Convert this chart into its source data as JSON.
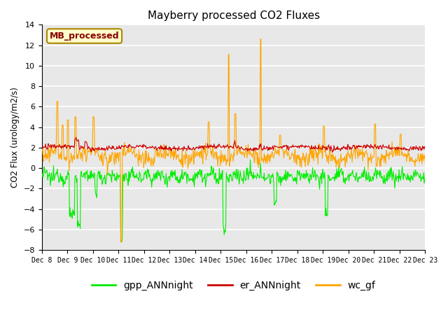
{
  "title": "Mayberry processed CO2 Fluxes",
  "ylabel": "CO2 Flux (urology/m2/s)",
  "ylim": [
    -8,
    14
  ],
  "yticks": [
    -8,
    -6,
    -4,
    -2,
    0,
    2,
    4,
    6,
    8,
    10,
    12,
    14
  ],
  "n_points": 720,
  "legend_labels": [
    "gpp_ANNnight",
    "er_ANNnight",
    "wc_gf"
  ],
  "legend_colors": [
    "#00ee00",
    "#cc0000",
    "#ffa500"
  ],
  "inset_label": "MB_processed",
  "inset_bg": "#ffffcc",
  "inset_text_color": "#880000",
  "inset_border_color": "#aa8800",
  "plot_bg_color": "#e8e8e8",
  "fig_bg_color": "#ffffff",
  "grid_color": "#ffffff",
  "line_width": 0.8,
  "xticklabels": [
    "Dec 8",
    "Dec 9",
    "Dec 10",
    "Dec 11",
    "Dec 12",
    "Dec 13",
    "Dec 14",
    "Dec 15",
    "Dec 16",
    "Dec 17",
    "Dec 18",
    "Dec 19",
    "Dec 20",
    "Dec 21",
    "Dec 22",
    "Dec 23"
  ]
}
